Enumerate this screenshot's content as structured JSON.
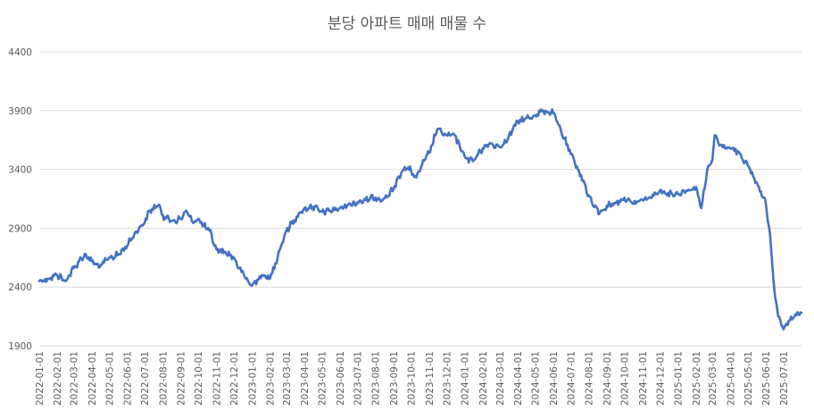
{
  "chart_data": {
    "type": "line",
    "title": "분당 아파트 매매 매물 수",
    "xlabel": "",
    "ylabel": "",
    "ylim": [
      1900,
      4400
    ],
    "yticks": [
      "1900",
      "2400",
      "2900",
      "3400",
      "3900",
      "4400"
    ],
    "grid": true,
    "legend": "none",
    "line_color": "#4472C4",
    "x_tick_labels": [
      "2022-01-01",
      "2022-02-01",
      "2022-03-01",
      "2022-04-01",
      "2022-05-01",
      "2022-06-01",
      "2022-07-01",
      "2022-08-01",
      "2022-09-01",
      "2022-10-01",
      "2022-11-01",
      "2022-12-01",
      "2023-01-01",
      "2023-02-01",
      "2023-03-01",
      "2023-04-01",
      "2023-05-01",
      "2023-06-01",
      "2023-07-01",
      "2023-08-01",
      "2023-09-01",
      "2023-10-01",
      "2023-11-01",
      "2023-12-01",
      "2024-01-01",
      "2024-02-01",
      "2024-03-01",
      "2024-04-01",
      "2024-05-01",
      "2024-06-01",
      "2024-07-01",
      "2024-08-01",
      "2024-09-01",
      "2024-10-01",
      "2024-11-01",
      "2024-12-01",
      "2025-01-01",
      "2025-02-01",
      "2025-03-01",
      "2025-04-01",
      "2025-05-01",
      "2025-06-01",
      "2025-07-01"
    ],
    "x_range": [
      "2022-01-01",
      "2025-08-01"
    ],
    "series": [
      {
        "points": [
          [
            "2022-01-01",
            2450
          ],
          [
            "2022-01-15",
            2470
          ],
          [
            "2022-02-01",
            2500
          ],
          [
            "2022-02-15",
            2450
          ],
          [
            "2022-03-01",
            2560
          ],
          [
            "2022-03-20",
            2680
          ],
          [
            "2022-04-01",
            2620
          ],
          [
            "2022-04-15",
            2570
          ],
          [
            "2022-05-01",
            2650
          ],
          [
            "2022-05-15",
            2670
          ],
          [
            "2022-06-01",
            2750
          ],
          [
            "2022-06-15",
            2870
          ],
          [
            "2022-07-01",
            2950
          ],
          [
            "2022-07-10",
            3050
          ],
          [
            "2022-07-25",
            3100
          ],
          [
            "2022-08-01",
            3010
          ],
          [
            "2022-08-15",
            2960
          ],
          [
            "2022-09-01",
            2980
          ],
          [
            "2022-09-10",
            3050
          ],
          [
            "2022-09-20",
            2960
          ],
          [
            "2022-10-01",
            2980
          ],
          [
            "2022-10-10",
            2920
          ],
          [
            "2022-10-20",
            2880
          ],
          [
            "2022-11-01",
            2720
          ],
          [
            "2022-11-15",
            2700
          ],
          [
            "2022-12-01",
            2650
          ],
          [
            "2022-12-10",
            2560
          ],
          [
            "2022-12-20",
            2480
          ],
          [
            "2023-01-01",
            2410
          ],
          [
            "2023-01-10",
            2460
          ],
          [
            "2023-01-20",
            2500
          ],
          [
            "2023-02-01",
            2470
          ],
          [
            "2023-02-10",
            2600
          ],
          [
            "2023-02-20",
            2750
          ],
          [
            "2023-03-01",
            2880
          ],
          [
            "2023-03-15",
            2970
          ],
          [
            "2023-04-01",
            3070
          ],
          [
            "2023-04-15",
            3080
          ],
          [
            "2023-05-01",
            3040
          ],
          [
            "2023-05-15",
            3050
          ],
          [
            "2023-06-01",
            3070
          ],
          [
            "2023-06-15",
            3100
          ],
          [
            "2023-07-01",
            3120
          ],
          [
            "2023-07-15",
            3140
          ],
          [
            "2023-08-01",
            3160
          ],
          [
            "2023-08-15",
            3150
          ],
          [
            "2023-09-01",
            3230
          ],
          [
            "2023-09-10",
            3340
          ],
          [
            "2023-09-20",
            3420
          ],
          [
            "2023-10-01",
            3390
          ],
          [
            "2023-10-10",
            3330
          ],
          [
            "2023-10-20",
            3440
          ],
          [
            "2023-11-01",
            3540
          ],
          [
            "2023-11-15",
            3740
          ],
          [
            "2023-12-01",
            3690
          ],
          [
            "2023-12-15",
            3690
          ],
          [
            "2024-01-01",
            3510
          ],
          [
            "2024-01-15",
            3470
          ],
          [
            "2024-02-01",
            3580
          ],
          [
            "2024-02-15",
            3620
          ],
          [
            "2024-03-01",
            3590
          ],
          [
            "2024-03-15",
            3660
          ],
          [
            "2024-04-01",
            3810
          ],
          [
            "2024-04-20",
            3840
          ],
          [
            "2024-05-01",
            3860
          ],
          [
            "2024-05-15",
            3900
          ],
          [
            "2024-06-01",
            3880
          ],
          [
            "2024-06-10",
            3780
          ],
          [
            "2024-06-20",
            3660
          ],
          [
            "2024-07-01",
            3530
          ],
          [
            "2024-07-15",
            3390
          ],
          [
            "2024-08-01",
            3180
          ],
          [
            "2024-08-10",
            3080
          ],
          [
            "2024-08-20",
            3030
          ],
          [
            "2024-09-01",
            3090
          ],
          [
            "2024-09-15",
            3110
          ],
          [
            "2024-10-01",
            3160
          ],
          [
            "2024-10-15",
            3110
          ],
          [
            "2024-11-01",
            3140
          ],
          [
            "2024-11-15",
            3160
          ],
          [
            "2024-12-01",
            3220
          ],
          [
            "2024-12-15",
            3200
          ],
          [
            "2025-01-01",
            3190
          ],
          [
            "2025-01-15",
            3220
          ],
          [
            "2025-02-01",
            3250
          ],
          [
            "2025-02-10",
            3070
          ],
          [
            "2025-02-20",
            3390
          ],
          [
            "2025-03-01",
            3480
          ],
          [
            "2025-03-05",
            3690
          ],
          [
            "2025-03-15",
            3610
          ],
          [
            "2025-04-01",
            3580
          ],
          [
            "2025-04-15",
            3550
          ],
          [
            "2025-05-01",
            3430
          ],
          [
            "2025-05-10",
            3340
          ],
          [
            "2025-05-20",
            3250
          ],
          [
            "2025-06-01",
            3100
          ],
          [
            "2025-06-08",
            2850
          ],
          [
            "2025-06-15",
            2400
          ],
          [
            "2025-06-22",
            2150
          ],
          [
            "2025-07-01",
            2040
          ],
          [
            "2025-07-10",
            2110
          ],
          [
            "2025-07-20",
            2150
          ],
          [
            "2025-08-01",
            2180
          ]
        ]
      }
    ]
  }
}
